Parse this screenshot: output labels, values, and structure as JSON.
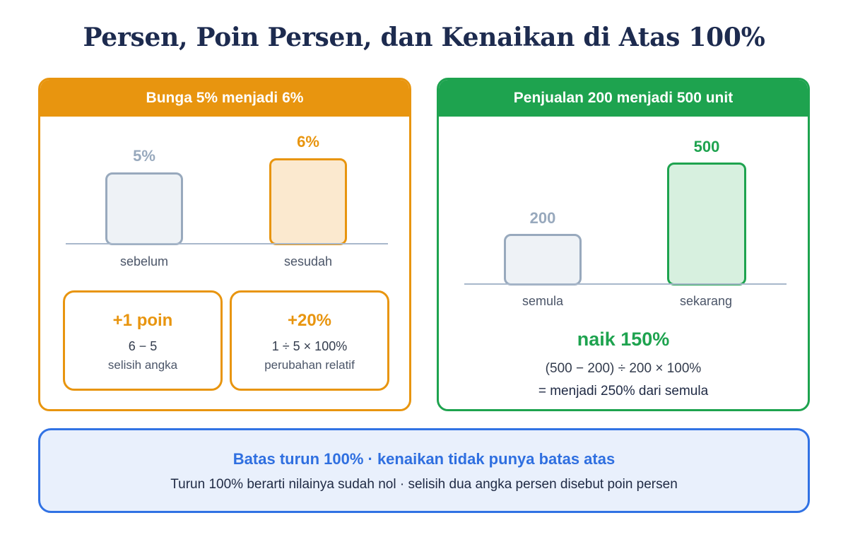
{
  "title": "Persen, Poin Persen, dan Kenaikan di Atas 100%",
  "colors": {
    "orange": "#e8950f",
    "green": "#1ea34f",
    "blue": "#2f6fe0",
    "gray": "#98a9bd"
  },
  "left_panel": {
    "header": "Bunga 5% menjadi 6%",
    "before": {
      "value": "5%",
      "label": "sebelum",
      "amount": 5
    },
    "after": {
      "value": "6%",
      "label": "sesudah",
      "amount": 6
    },
    "point_box": {
      "headline": "+1 poin",
      "formula": "6 − 5",
      "caption": "selisih angka"
    },
    "relative_box": {
      "headline": "+20%",
      "formula": "1 ÷ 5 × 100%",
      "caption": "perubahan relatif"
    }
  },
  "right_panel": {
    "header": "Penjualan 200 menjadi 500 unit",
    "before": {
      "value": "200",
      "label": "semula",
      "amount": 200
    },
    "after": {
      "value": "500",
      "label": "sekarang",
      "amount": 500
    },
    "result": "naik 150%",
    "formula": "(500 − 200) ÷ 200 × 100%",
    "summary": "= menjadi 250% dari semula"
  },
  "note": {
    "heading": "Batas turun 100% · kenaikan tidak punya batas atas",
    "body": "Turun 100% berarti nilainya sudah nol · selisih dua angka persen disebut poin persen"
  }
}
